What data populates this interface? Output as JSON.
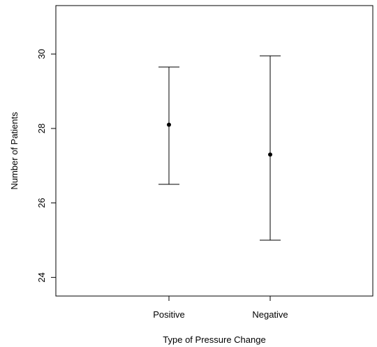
{
  "chart_data": {
    "type": "errorbar",
    "categories": [
      "Positive",
      "Negative"
    ],
    "series": [
      {
        "mean": [
          28.1,
          27.3
        ],
        "lower": [
          26.5,
          25.0
        ],
        "upper": [
          29.65,
          29.95
        ]
      }
    ],
    "xlabel": "Type of Pressure Change",
    "ylabel": "Number of Patients",
    "ylim": [
      23.5,
      31.3
    ],
    "yticks": [
      "24",
      "26",
      "28",
      "30"
    ],
    "grid": false,
    "legend": false
  }
}
